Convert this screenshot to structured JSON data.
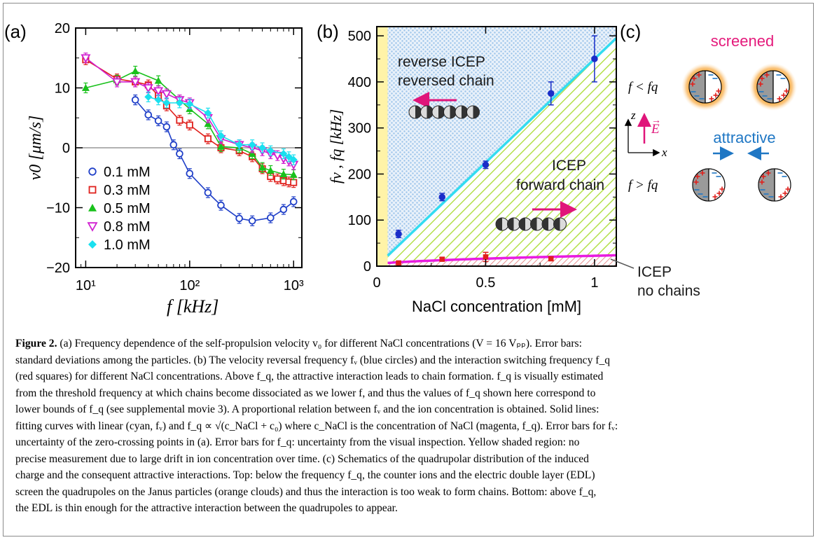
{
  "figure": {
    "panel_labels": [
      "(a)",
      "(b)",
      "(c)"
    ],
    "caption_label": "Figure 2.",
    "caption_lines": [
      "(a) Frequency dependence of the self-propulsion velocity v₀ for different NaCl concentrations (V = 16 Vₚₚ). Error bars:",
      "standard deviations among the particles. (b) The velocity reversal frequency fᵥ (blue circles) and the interaction switching frequency f_q",
      "(red squares) for different NaCl concentrations. Above f_q, the attractive interaction leads to chain formation. f_q is visually estimated",
      "from the threshold frequency at which chains become dissociated as we lower f, and thus the values of f_q shown here correspond to",
      "lower bounds of f_q (see supplemental movie 3). A proportional relation between fᵥ and the ion concentration is obtained. Solid lines:",
      "fitting curves with linear (cyan, fᵥ) and f_q ∝ √(c_NaCl + c₀) where c_NaCl is the concentration of NaCl (magenta, f_q). Error bars for fᵥ:",
      "uncertainty of the zero-crossing points in (a). Error bars for f_q: uncertainty from the visual inspection. Yellow shaded region: no",
      "precise measurement due to large drift in ion concentration over time. (c) Schematics of the quadrupolar distribution of the induced",
      "charge and the consequent attractive interactions. Top: below the frequency f_q, the counter ions and the electric double layer (EDL)",
      "screen the quadrupoles on the Janus particles (orange clouds) and thus the interaction is too weak to form chains. Bottom: above f_q,",
      "the EDL is thin enough for the attractive interaction between the quadrupoles to appear."
    ]
  },
  "chart_data": [
    {
      "panel": "(a)",
      "type": "line",
      "xscale": "log",
      "xlim": [
        8,
        1200
      ],
      "ylim": [
        -20,
        20
      ],
      "xlabel": "f  [kHz]",
      "ylabel": "v0 [μm/s]",
      "x_ticks": [
        10,
        100,
        1000
      ],
      "x_tick_labels": [
        "10¹",
        "10²",
        "10³"
      ],
      "y_ticks": [
        -20,
        -10,
        0,
        10,
        20
      ],
      "y_tick_labels": [
        "−20",
        "−10",
        "0",
        "10",
        "20"
      ],
      "zero_line": true,
      "legend_position": "bottom-left",
      "series": [
        {
          "name": "0.1 mM",
          "marker": "circle-open",
          "color": "#1f3fc8",
          "x": [
            30,
            40,
            50,
            60,
            70,
            80,
            100,
            150,
            200,
            300,
            400,
            600,
            800,
            1000
          ],
          "y": [
            8,
            5.5,
            4.5,
            3.5,
            0.5,
            -1,
            -4.3,
            -7.5,
            -9.6,
            -11.8,
            -12.2,
            -11.7,
            -10.3,
            -9
          ]
        },
        {
          "name": "0.3 mM",
          "marker": "square-open",
          "color": "#e0201c",
          "x": [
            10,
            20,
            30,
            40,
            50,
            60,
            80,
            100,
            150,
            200,
            300,
            400,
            500,
            600,
            700,
            800,
            900,
            1000
          ],
          "y": [
            14.7,
            11.5,
            11,
            10.5,
            8.7,
            7,
            4.6,
            3.8,
            1.5,
            0,
            -0.5,
            -1.5,
            -3.5,
            -4.8,
            -5.2,
            -5.5,
            -5.7,
            -5.8
          ]
        },
        {
          "name": "0.5 mM",
          "marker": "triangle-filled",
          "color": "#19c11c",
          "x": [
            10,
            20,
            30,
            50,
            80,
            100,
            150,
            200,
            300,
            400,
            500,
            600,
            800,
            1000
          ],
          "y": [
            10,
            11.3,
            12.8,
            11.2,
            8,
            6.5,
            4,
            0.2,
            0,
            -1,
            -3.3,
            -3.8,
            -4.4,
            -4.5
          ]
        },
        {
          "name": "0.8 mM",
          "marker": "triangle-down-open",
          "color": "#d01fd0",
          "x": [
            10,
            20,
            30,
            40,
            50,
            60,
            80,
            100,
            150,
            200,
            300,
            400,
            500,
            600,
            700,
            800,
            900,
            1000
          ],
          "y": [
            15,
            11,
            11,
            10,
            9.5,
            9,
            8,
            7.5,
            5,
            1.5,
            0.5,
            0,
            -0.5,
            -1,
            -1.3,
            -1.8,
            -2.2,
            -2.8
          ]
        },
        {
          "name": "1.0 mM",
          "marker": "diamond-filled",
          "color": "#1ae0ef",
          "x": [
            40,
            50,
            60,
            80,
            100,
            150,
            200,
            300,
            400,
            500,
            600,
            800,
            900,
            1000
          ],
          "y": [
            8.5,
            8,
            7.5,
            7.5,
            7.3,
            5.8,
            2,
            0.5,
            0.5,
            0,
            -0.5,
            -1,
            -1.5,
            -2
          ]
        }
      ]
    },
    {
      "panel": "(b)",
      "type": "scatter",
      "xlim": [
        0,
        1.1
      ],
      "ylim": [
        0,
        520
      ],
      "xlabel": "NaCl concentration [mM]",
      "ylabel": "fv , fq  [kHz]",
      "x_ticks": [
        0,
        0.5,
        1
      ],
      "x_tick_labels": [
        "0",
        "0.5",
        "1"
      ],
      "y_ticks": [
        0,
        100,
        200,
        300,
        400,
        500
      ],
      "y_tick_labels": [
        "0",
        "100",
        "200",
        "300",
        "400",
        "500"
      ],
      "series": [
        {
          "name": "fv",
          "marker": "circle-filled",
          "color": "#1a2dc8",
          "x": [
            0.1,
            0.3,
            0.5,
            0.8,
            1.0
          ],
          "y": [
            70,
            150,
            220,
            375,
            450
          ],
          "err": [
            8,
            8,
            8,
            25,
            50
          ]
        },
        {
          "name": "fq",
          "marker": "square-filled",
          "color": "#e0201c",
          "x": [
            0.1,
            0.3,
            0.5,
            0.8
          ],
          "y": [
            7,
            15,
            20,
            16
          ],
          "err": [
            2,
            4,
            10,
            4
          ]
        }
      ],
      "fits": [
        {
          "name": "fv fit",
          "color": "#33dcf0",
          "kind": "linear",
          "slope": 450,
          "x_range": [
            0.05,
            1.1
          ]
        },
        {
          "name": "fq fit",
          "color": "#e81ce0",
          "kind": "sqrt",
          "coef": 22,
          "c0": 0.05,
          "x_range": [
            0.05,
            1.1
          ]
        }
      ],
      "shaded_regions": [
        {
          "label": "Yellow shaded region",
          "color": "#fff3a8",
          "x_range": [
            0,
            0.05
          ]
        }
      ],
      "annotations": {
        "reverse_line1": "reverse ICEP",
        "reverse_line2": "reversed chain",
        "forward_line1": "ICEP",
        "forward_line2": "forward chain",
        "nochain_line1": "ICEP",
        "nochain_line2": "no chains"
      }
    }
  ],
  "panel_c": {
    "top_label": "screened",
    "bottom_label": "attractive",
    "cond_top": "f < fq",
    "cond_bottom": "f > fq",
    "axis_z": "z",
    "axis_x": "x",
    "field_label": "E"
  },
  "colors": {
    "blue_marker": "#1a2dc8",
    "cyan_fit": "#33dcf0",
    "magenta_fit": "#e81ce0",
    "red_marker": "#e0201c",
    "yellow_region": "#fff3a8",
    "blue_dots": "#9cc4ea",
    "green_hatch": "#b4e04a",
    "screened_text": "#e41a7b",
    "attractive_text": "#1f77c4",
    "arrow_magenta": "#e0157a",
    "glow_orange": "#f7a428"
  }
}
